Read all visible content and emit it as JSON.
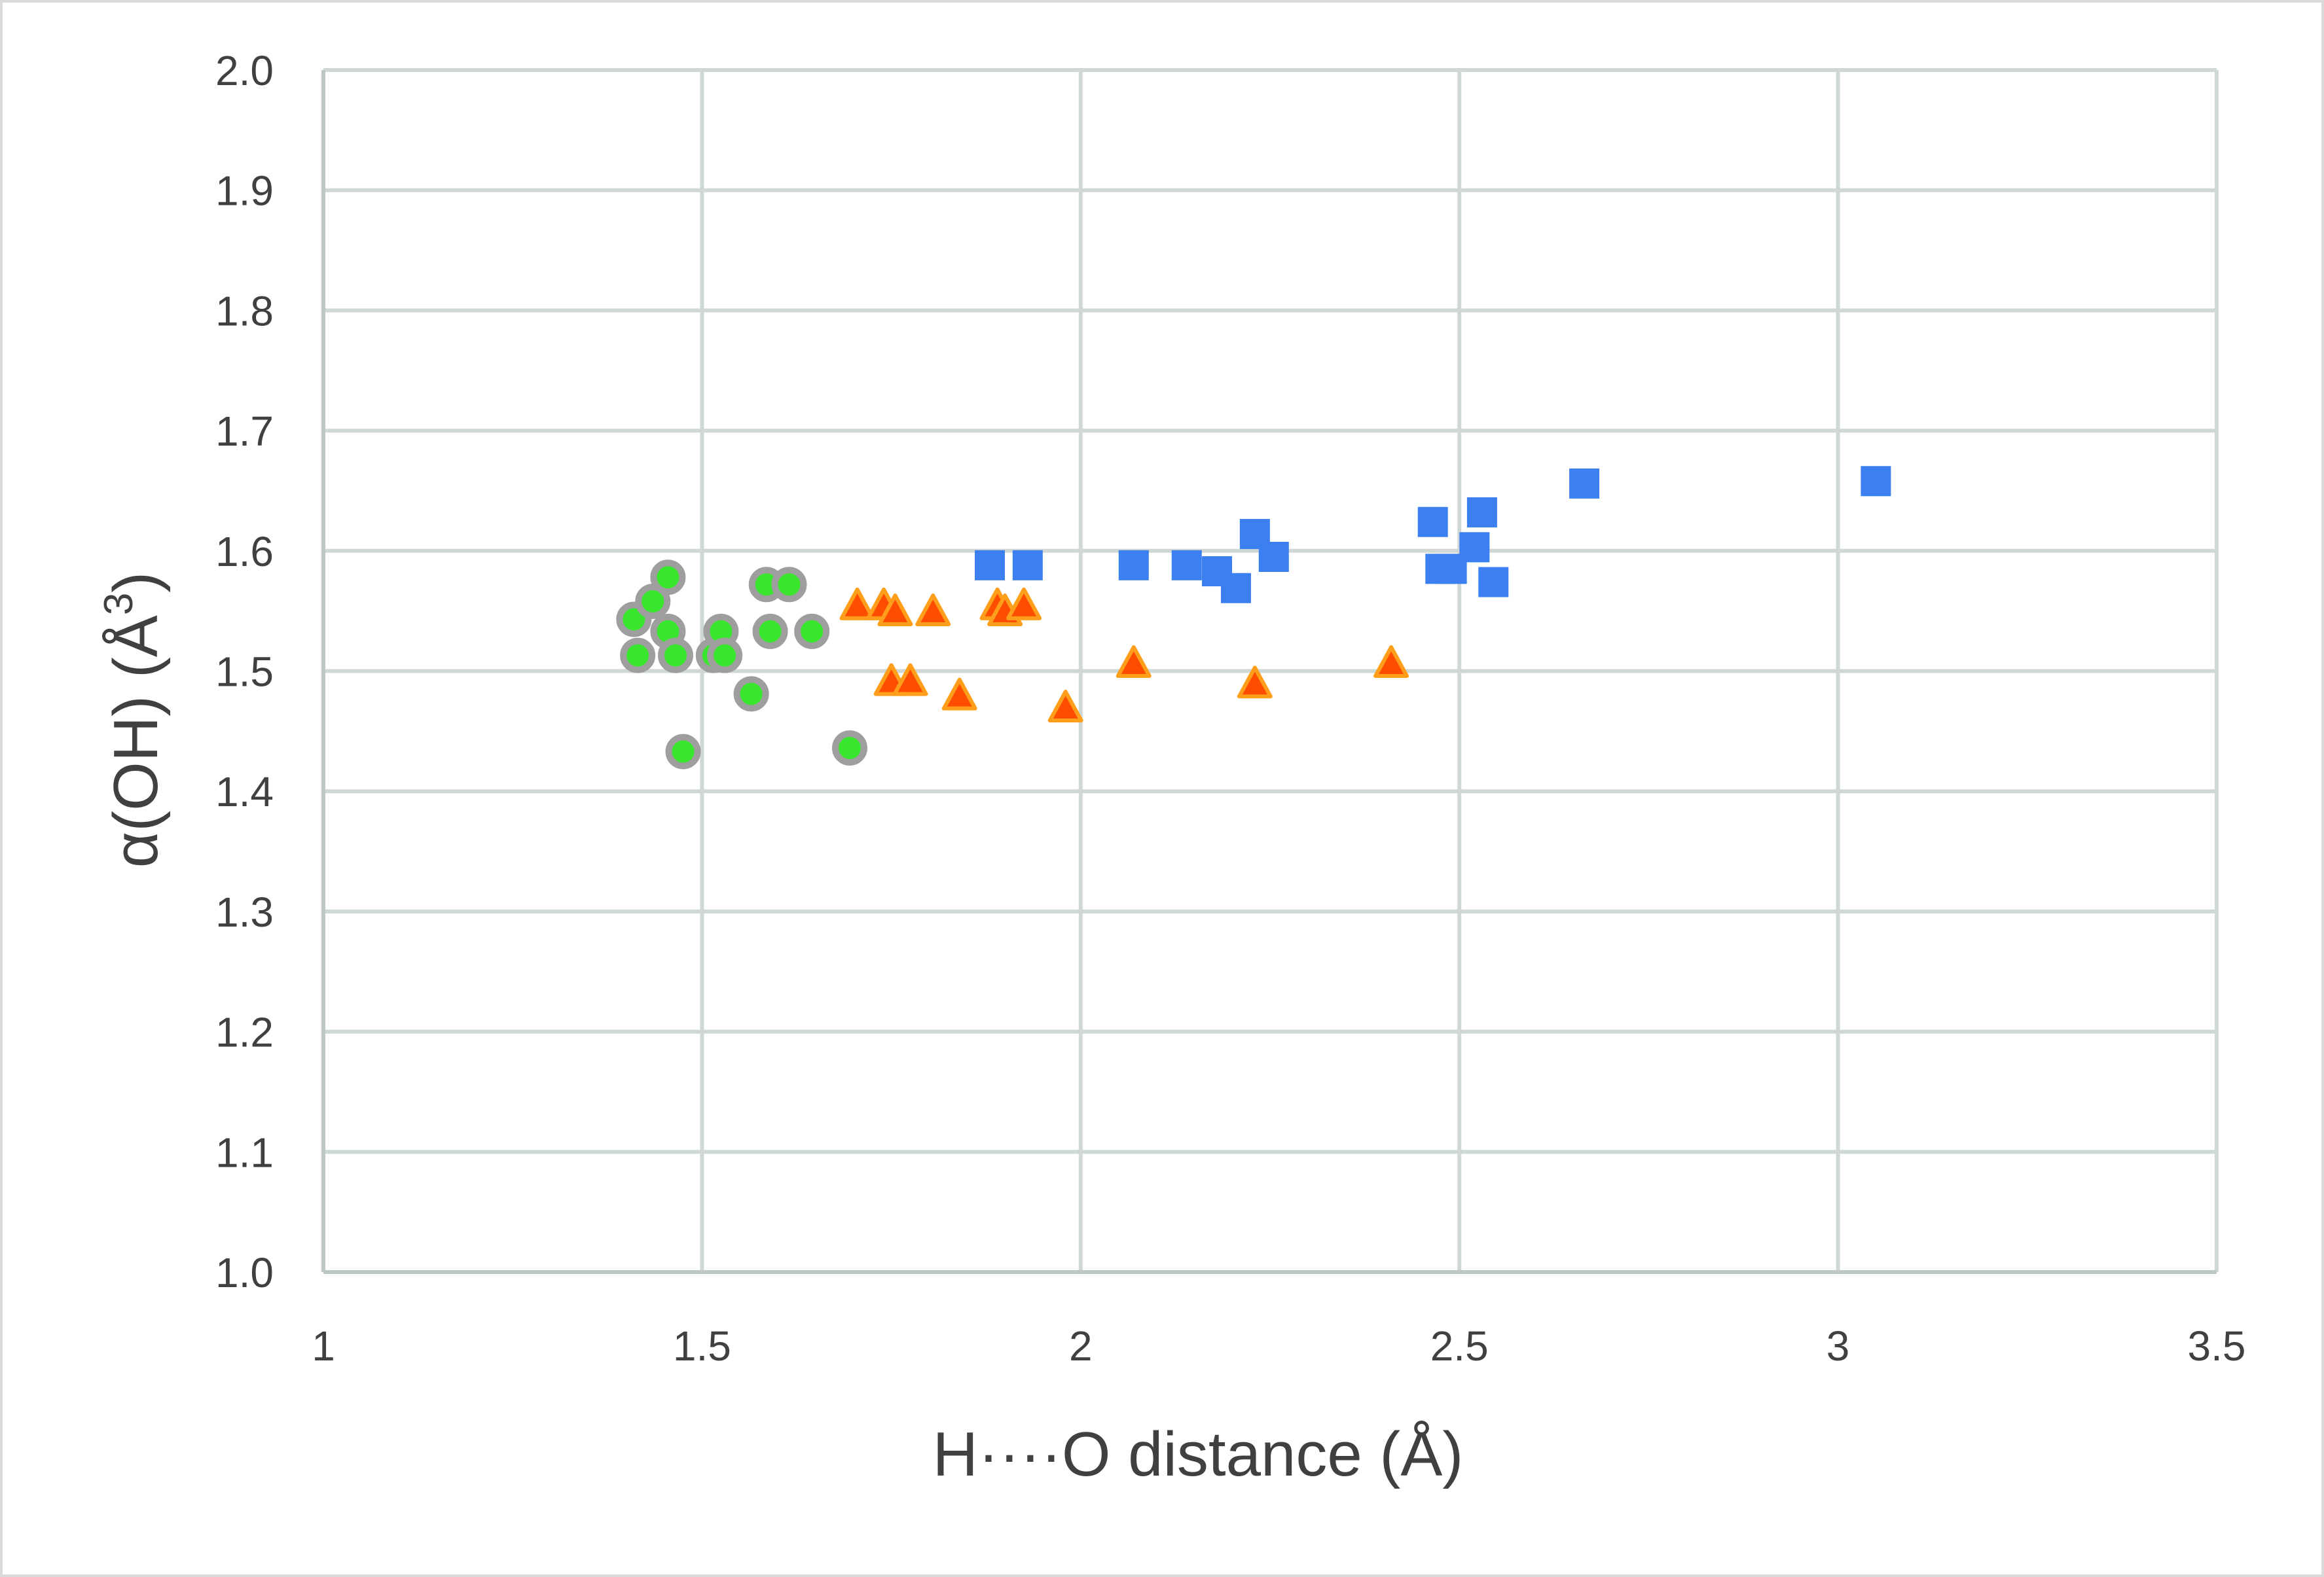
{
  "chart_data": {
    "type": "scatter",
    "xlabel": "H····O distance (Å)",
    "ylabel_main": "α(OH) (Å",
    "ylabel_sup": "3",
    "ylabel_end": ")",
    "xlim": [
      1,
      3.5
    ],
    "ylim": [
      1.0,
      2.0
    ],
    "x_ticks": [
      1,
      1.5,
      2,
      2.5,
      3,
      3.5
    ],
    "x_tick_labels": [
      "1",
      "1.5",
      "2",
      "2.5",
      "3",
      "3.5"
    ],
    "y_ticks": [
      1.0,
      1.1,
      1.2,
      1.3,
      1.4,
      1.5,
      1.6,
      1.7,
      1.8,
      1.9,
      2.0
    ],
    "y_tick_labels": [
      "1.0",
      "1.1",
      "1.2",
      "1.3",
      "1.4",
      "1.5",
      "1.6",
      "1.7",
      "1.8",
      "1.9",
      "2.0"
    ],
    "grid": true,
    "legend": "none",
    "series": [
      {
        "marker": "circle",
        "color": "#39e62e",
        "edge_color": "#9e9e9e",
        "points": [
          [
            1.41,
            1.543
          ],
          [
            1.415,
            1.513
          ],
          [
            1.435,
            1.558
          ],
          [
            1.455,
            1.578
          ],
          [
            1.455,
            1.533
          ],
          [
            1.465,
            1.513
          ],
          [
            1.475,
            1.433
          ],
          [
            1.515,
            1.513
          ],
          [
            1.525,
            1.533
          ],
          [
            1.53,
            1.513
          ],
          [
            1.565,
            1.481
          ],
          [
            1.585,
            1.572
          ],
          [
            1.59,
            1.533
          ],
          [
            1.615,
            1.572
          ],
          [
            1.645,
            1.533
          ],
          [
            1.695,
            1.436
          ]
        ]
      },
      {
        "marker": "triangle",
        "color": "#ff4d00",
        "edge_color": "#ff9e1a",
        "points": [
          [
            1.705,
            1.553
          ],
          [
            1.74,
            1.553
          ],
          [
            1.755,
            1.548
          ],
          [
            1.75,
            1.49
          ],
          [
            1.775,
            1.49
          ],
          [
            1.805,
            1.548
          ],
          [
            1.84,
            1.478
          ],
          [
            1.89,
            1.553
          ],
          [
            1.9,
            1.548
          ],
          [
            1.925,
            1.553
          ],
          [
            1.98,
            1.468
          ],
          [
            2.07,
            1.505
          ],
          [
            2.23,
            1.488
          ],
          [
            2.41,
            1.505
          ]
        ]
      },
      {
        "marker": "square",
        "color": "#3b7ff0",
        "points": [
          [
            1.88,
            1.588
          ],
          [
            1.93,
            1.588
          ],
          [
            2.07,
            1.588
          ],
          [
            2.14,
            1.588
          ],
          [
            2.18,
            1.583
          ],
          [
            2.205,
            1.569
          ],
          [
            2.23,
            1.614
          ],
          [
            2.255,
            1.595
          ],
          [
            2.465,
            1.624
          ],
          [
            2.475,
            1.585
          ],
          [
            2.49,
            1.585
          ],
          [
            2.52,
            1.603
          ],
          [
            2.53,
            1.632
          ],
          [
            2.545,
            1.574
          ],
          [
            2.665,
            1.656
          ],
          [
            3.05,
            1.658
          ]
        ]
      }
    ]
  }
}
